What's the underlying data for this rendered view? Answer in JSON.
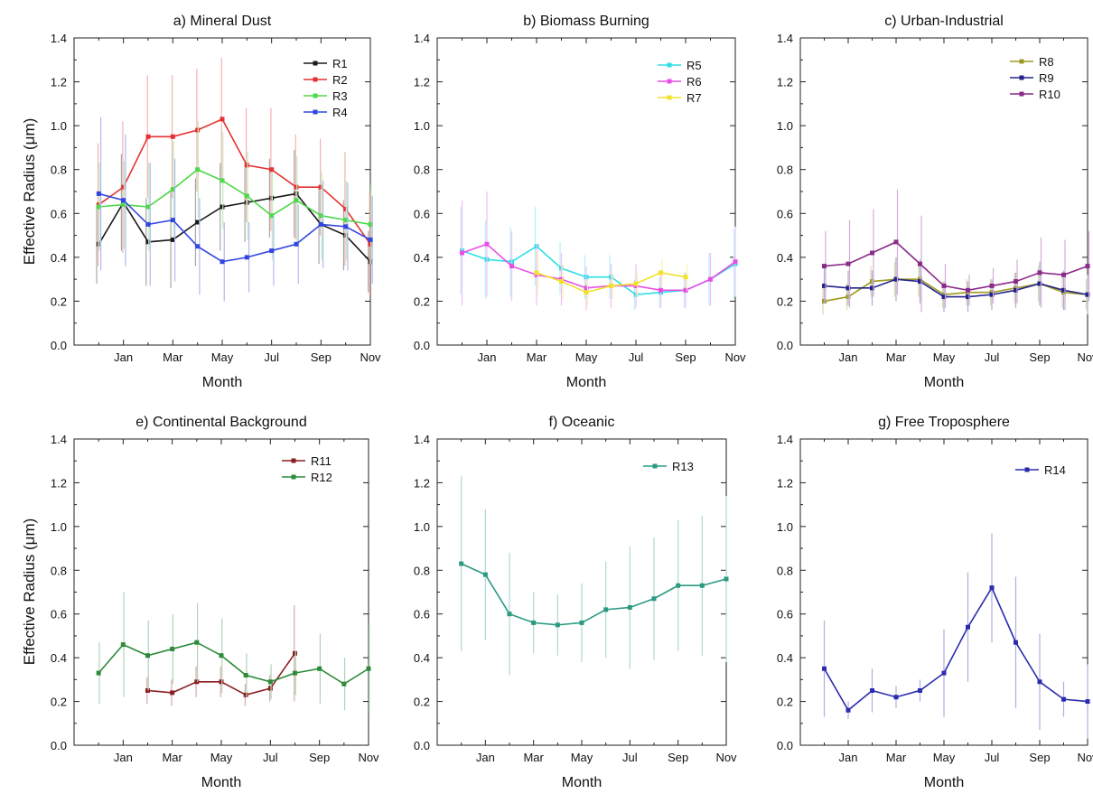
{
  "figure": {
    "ylabel_top": "Effective Radius (μm)",
    "ylabel_bottom": "Effective Radius (μm)"
  },
  "chart_data": [
    {
      "type": "line",
      "title": "a)  Mineral Dust",
      "xlabel": "Month",
      "ylabel": "Effective Radius (μm)",
      "xlim": [
        0,
        12
      ],
      "ylim": [
        0.0,
        1.4
      ],
      "yticks": [
        "0.0",
        "0.2",
        "0.4",
        "0.6",
        "0.8",
        "1.0",
        "1.2",
        "1.4"
      ],
      "xticks": [
        {
          "x": 2,
          "label": "Jan"
        },
        {
          "x": 4,
          "label": "Mar"
        },
        {
          "x": 6,
          "label": "May"
        },
        {
          "x": 8,
          "label": "Jul"
        },
        {
          "x": 10,
          "label": "Sep"
        },
        {
          "x": 12,
          "label": "Nov"
        }
      ],
      "legend": "top-right",
      "series": [
        {
          "name": "R1",
          "color": "#1a1a1a",
          "x": [
            1,
            2,
            3,
            4,
            5,
            6,
            7,
            8,
            9,
            10,
            11,
            12
          ],
          "values": [
            0.46,
            0.65,
            0.47,
            0.48,
            0.56,
            0.63,
            0.65,
            0.67,
            0.69,
            0.55,
            0.5,
            0.38
          ],
          "err": [
            0.18,
            0.22,
            0.2,
            0.22,
            0.2,
            0.2,
            0.18,
            0.18,
            0.2,
            0.18,
            0.16,
            0.14
          ]
        },
        {
          "name": "R2",
          "color": "#e53131",
          "x": [
            1,
            2,
            3,
            4,
            5,
            6,
            7,
            8,
            9,
            10,
            11,
            12
          ],
          "values": [
            0.64,
            0.72,
            0.95,
            0.95,
            0.98,
            1.03,
            0.82,
            0.8,
            0.72,
            0.72,
            0.62,
            0.46
          ],
          "err": [
            0.28,
            0.3,
            0.28,
            0.28,
            0.28,
            0.28,
            0.26,
            0.28,
            0.24,
            0.22,
            0.26,
            0.24
          ]
        },
        {
          "name": "R3",
          "color": "#4fd84a",
          "x": [
            1,
            2,
            3,
            4,
            5,
            6,
            7,
            8,
            9,
            10,
            11,
            12
          ],
          "values": [
            0.63,
            0.64,
            0.63,
            0.71,
            0.8,
            0.75,
            0.68,
            0.59,
            0.66,
            0.59,
            0.57,
            0.55
          ],
          "err": [
            0.2,
            0.2,
            0.2,
            0.22,
            0.22,
            0.22,
            0.2,
            0.2,
            0.2,
            0.2,
            0.18,
            0.18
          ]
        },
        {
          "name": "R4",
          "color": "#3347e0",
          "x": [
            1,
            2,
            3,
            4,
            5,
            6,
            7,
            8,
            9,
            10,
            11,
            12
          ],
          "values": [
            0.69,
            0.66,
            0.55,
            0.57,
            0.45,
            0.38,
            0.4,
            0.43,
            0.46,
            0.55,
            0.54,
            0.48
          ],
          "err": [
            0.35,
            0.3,
            0.28,
            0.28,
            0.22,
            0.18,
            0.16,
            0.16,
            0.18,
            0.2,
            0.2,
            0.2
          ]
        }
      ]
    },
    {
      "type": "line",
      "title": "b) Biomass Burning",
      "xlabel": "Month",
      "ylabel": "",
      "xlim": [
        0,
        12
      ],
      "ylim": [
        0.0,
        1.4
      ],
      "yticks": [
        "0.0",
        "0.2",
        "0.4",
        "0.6",
        "0.8",
        "1.0",
        "1.2",
        "1.4"
      ],
      "xticks": [
        {
          "x": 2,
          "label": "Jan"
        },
        {
          "x": 4,
          "label": "Mar"
        },
        {
          "x": 6,
          "label": "May"
        },
        {
          "x": 8,
          "label": "Jul"
        },
        {
          "x": 10,
          "label": "Sep"
        },
        {
          "x": 12,
          "label": "Nov"
        }
      ],
      "legend": "top-right",
      "series": [
        {
          "name": "R5",
          "color": "#2ee0e6",
          "x": [
            1,
            2,
            3,
            4,
            5,
            6,
            7,
            8,
            9,
            10,
            11,
            12
          ],
          "values": [
            0.43,
            0.39,
            0.38,
            0.45,
            0.35,
            0.31,
            0.31,
            0.23,
            0.24,
            0.25,
            0.3,
            0.37
          ],
          "err": [
            0.2,
            0.18,
            0.16,
            0.18,
            0.12,
            0.1,
            0.1,
            0.07,
            0.07,
            0.08,
            0.12,
            0.16
          ]
        },
        {
          "name": "R6",
          "color": "#e84ee6",
          "x": [
            1,
            2,
            3,
            4,
            5,
            6,
            7,
            8,
            9,
            10,
            11,
            12
          ],
          "values": [
            0.42,
            0.46,
            0.36,
            0.32,
            0.3,
            0.26,
            0.27,
            0.27,
            0.25,
            0.25,
            0.3,
            0.38
          ],
          "err": [
            0.24,
            0.24,
            0.16,
            0.14,
            0.12,
            0.1,
            0.1,
            0.1,
            0.08,
            0.08,
            0.12,
            0.16
          ]
        },
        {
          "name": "R7",
          "color": "#f2e22a",
          "x": [
            4,
            5,
            6,
            7,
            8,
            9,
            10
          ],
          "values": [
            0.33,
            0.29,
            0.24,
            0.27,
            0.28,
            0.33,
            0.31
          ],
          "err": [
            0.1,
            0.08,
            0.06,
            0.06,
            0.06,
            0.06,
            0.06
          ]
        }
      ]
    },
    {
      "type": "line",
      "title": "c) Urban-Industrial",
      "xlabel": "Month",
      "ylabel": "",
      "xlim": [
        0,
        12
      ],
      "ylim": [
        0.0,
        1.4
      ],
      "yticks": [
        "0.0",
        "0.2",
        "0.4",
        "0.6",
        "0.8",
        "1.0",
        "1.2",
        "1.4"
      ],
      "xticks": [
        {
          "x": 2,
          "label": "Jan"
        },
        {
          "x": 4,
          "label": "Mar"
        },
        {
          "x": 6,
          "label": "May"
        },
        {
          "x": 8,
          "label": "Jul"
        },
        {
          "x": 10,
          "label": "Sep"
        },
        {
          "x": 12,
          "label": "Nov"
        }
      ],
      "legend": "top-right",
      "series": [
        {
          "name": "R8",
          "color": "#9c9a1e",
          "x": [
            1,
            2,
            3,
            4,
            5,
            6,
            7,
            8,
            9,
            10,
            11,
            12
          ],
          "values": [
            0.2,
            0.22,
            0.29,
            0.3,
            0.3,
            0.23,
            0.24,
            0.24,
            0.26,
            0.28,
            0.24,
            0.23
          ],
          "err": [
            0.06,
            0.06,
            0.07,
            0.08,
            0.08,
            0.06,
            0.06,
            0.06,
            0.07,
            0.08,
            0.07,
            0.07
          ]
        },
        {
          "name": "R9",
          "color": "#23238a",
          "x": [
            1,
            2,
            3,
            4,
            5,
            6,
            7,
            8,
            9,
            10,
            11,
            12
          ],
          "values": [
            0.27,
            0.26,
            0.26,
            0.3,
            0.29,
            0.22,
            0.22,
            0.23,
            0.25,
            0.28,
            0.25,
            0.23
          ],
          "err": [
            0.08,
            0.08,
            0.08,
            0.1,
            0.1,
            0.07,
            0.07,
            0.07,
            0.08,
            0.1,
            0.09,
            0.09
          ]
        },
        {
          "name": "R10",
          "color": "#8a2a8a",
          "x": [
            1,
            2,
            3,
            4,
            5,
            6,
            7,
            8,
            9,
            10,
            11,
            12
          ],
          "values": [
            0.36,
            0.37,
            0.42,
            0.47,
            0.37,
            0.27,
            0.25,
            0.27,
            0.29,
            0.33,
            0.32,
            0.36
          ],
          "err": [
            0.16,
            0.2,
            0.2,
            0.24,
            0.22,
            0.1,
            0.07,
            0.08,
            0.1,
            0.16,
            0.16,
            0.16
          ]
        }
      ]
    },
    {
      "type": "line",
      "title": "e) Continental Background",
      "xlabel": "Month",
      "ylabel": "Effective Radius (μm)",
      "xlim": [
        0,
        12
      ],
      "ylim": [
        0.0,
        1.4
      ],
      "yticks": [
        "0.0",
        "0.2",
        "0.4",
        "0.6",
        "0.8",
        "1.0",
        "1.2",
        "1.4"
      ],
      "xticks": [
        {
          "x": 2,
          "label": "Jan"
        },
        {
          "x": 4,
          "label": "Mar"
        },
        {
          "x": 6,
          "label": "May"
        },
        {
          "x": 8,
          "label": "Jul"
        },
        {
          "x": 10,
          "label": "Sep"
        },
        {
          "x": 12,
          "label": "Nov"
        }
      ],
      "legend": "top-right",
      "series": [
        {
          "name": "R11",
          "color": "#8a1f22",
          "x": [
            3,
            4,
            5,
            6,
            7,
            8,
            9
          ],
          "values": [
            0.25,
            0.24,
            0.29,
            0.29,
            0.23,
            0.26,
            0.42
          ],
          "err": [
            0.06,
            0.06,
            0.07,
            0.07,
            0.05,
            0.06,
            0.22
          ]
        },
        {
          "name": "R12",
          "color": "#2e8a3a",
          "x": [
            1,
            2,
            3,
            4,
            5,
            6,
            7,
            8,
            9,
            10,
            11,
            12
          ],
          "values": [
            0.33,
            0.46,
            0.41,
            0.44,
            0.47,
            0.41,
            0.32,
            0.29,
            0.33,
            0.35,
            0.28,
            0.35
          ],
          "err": [
            0.14,
            0.24,
            0.16,
            0.16,
            0.18,
            0.17,
            0.1,
            0.08,
            0.1,
            0.16,
            0.12,
            0.2
          ]
        }
      ]
    },
    {
      "type": "line",
      "title": "f) Oceanic",
      "xlabel": "Month",
      "ylabel": "",
      "xlim": [
        0,
        12
      ],
      "ylim": [
        0.0,
        1.4
      ],
      "yticks": [
        "0.0",
        "0.2",
        "0.4",
        "0.6",
        "0.8",
        "1.0",
        "1.2",
        "1.4"
      ],
      "xticks": [
        {
          "x": 2,
          "label": "Jan"
        },
        {
          "x": 4,
          "label": "Mar"
        },
        {
          "x": 6,
          "label": "May"
        },
        {
          "x": 8,
          "label": "Jul"
        },
        {
          "x": 10,
          "label": "Sep"
        },
        {
          "x": 12,
          "label": "Nov"
        }
      ],
      "legend": "top-right",
      "series": [
        {
          "name": "R13",
          "color": "#2a9a82",
          "x": [
            1,
            2,
            3,
            4,
            5,
            6,
            7,
            8,
            9,
            10,
            11,
            12
          ],
          "values": [
            0.83,
            0.78,
            0.6,
            0.56,
            0.55,
            0.56,
            0.62,
            0.63,
            0.67,
            0.73,
            0.73,
            0.76
          ],
          "err": [
            0.4,
            0.3,
            0.28,
            0.14,
            0.14,
            0.18,
            0.22,
            0.28,
            0.28,
            0.3,
            0.32,
            0.38
          ]
        }
      ]
    },
    {
      "type": "line",
      "title": "g) Free Troposphere",
      "xlabel": "Month",
      "ylabel": "",
      "xlim": [
        0,
        12
      ],
      "ylim": [
        0.0,
        1.4
      ],
      "yticks": [
        "0.0",
        "0.2",
        "0.4",
        "0.6",
        "0.8",
        "1.0",
        "1.2",
        "1.4"
      ],
      "xticks": [
        {
          "x": 2,
          "label": "Jan"
        },
        {
          "x": 4,
          "label": "Mar"
        },
        {
          "x": 6,
          "label": "May"
        },
        {
          "x": 8,
          "label": "Jul"
        },
        {
          "x": 10,
          "label": "Sep"
        },
        {
          "x": 12,
          "label": "Nov"
        }
      ],
      "legend": "top-right",
      "series": [
        {
          "name": "R14",
          "color": "#2b2bb0",
          "x": [
            1,
            2,
            3,
            4,
            5,
            6,
            7,
            8,
            9,
            10,
            11,
            12
          ],
          "values": [
            0.35,
            0.16,
            0.25,
            0.22,
            0.25,
            0.33,
            0.54,
            0.72,
            0.47,
            0.29,
            0.21,
            0.2
          ],
          "err": [
            0.22,
            0.04,
            0.1,
            0.05,
            0.05,
            0.2,
            0.25,
            0.25,
            0.3,
            0.22,
            0.08,
            0.17
          ]
        }
      ]
    }
  ]
}
